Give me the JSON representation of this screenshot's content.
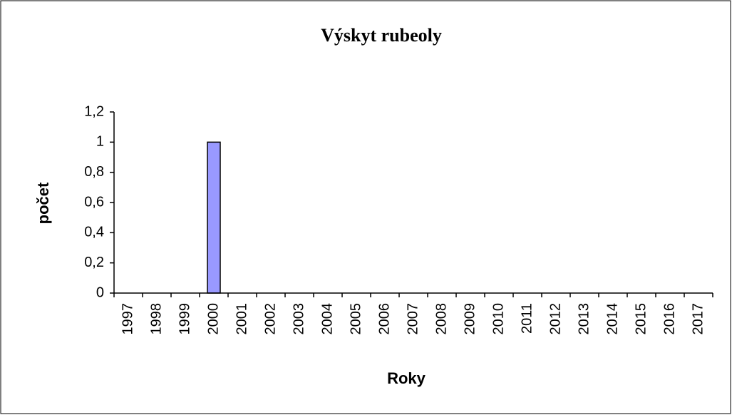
{
  "chart_data": {
    "type": "bar",
    "title": "Výskyt rubeoly",
    "x_label": "Roky",
    "y_label": "počet",
    "categories": [
      "1997",
      "1998",
      "1999",
      "2000",
      "2001",
      "2002",
      "2003",
      "2004",
      "2005",
      "2006",
      "2007",
      "2008",
      "2009",
      "2010",
      "2011",
      "2012",
      "2013",
      "2014",
      "2015",
      "2016",
      "2017"
    ],
    "values": [
      0,
      0,
      0,
      1,
      0,
      0,
      0,
      0,
      0,
      0,
      0,
      0,
      0,
      0,
      0,
      0,
      0,
      0,
      0,
      0,
      0
    ],
    "color": "#9999ff",
    "ylim": [
      0,
      1.2
    ],
    "yticks": [
      0,
      {
        "value": 0.2,
        "label": "0,2"
      },
      {
        "value": 0.4,
        "label": "0,4"
      },
      {
        "value": 0.6,
        "label": "0,6"
      },
      {
        "value": 0.8,
        "label": "0,8"
      },
      1,
      {
        "value": 1.2,
        "label": "1,2"
      }
    ],
    "grid": false
  }
}
